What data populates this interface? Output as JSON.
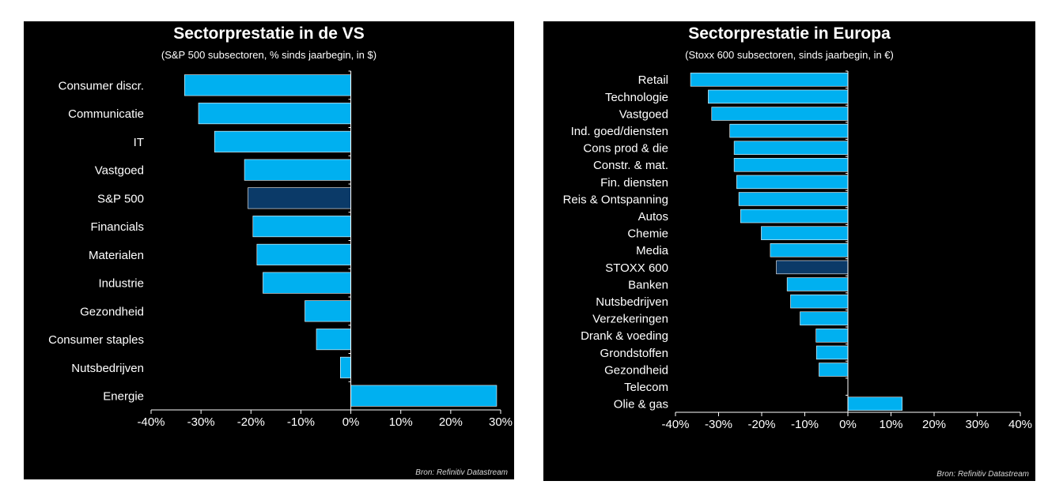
{
  "colors": {
    "bar": "#00b0f0",
    "highlight": "#0b3a68",
    "bar_outline": "#ffffff",
    "axis": "#ffffff",
    "background": "#000000"
  },
  "panels": {
    "us": {
      "title": "Sectorprestatie in de VS",
      "subtitle": "(S&P 500 subsectoren, % sinds jaarbegin, in $)",
      "source": "Bron: Refinitiv Datastream"
    },
    "eu": {
      "title": "Sectorprestatie in Europa",
      "subtitle": "(Stoxx 600 subsectoren, sinds jaarbegin, in €)",
      "source": "Bron: Refinitiv Datastream"
    }
  },
  "chart_data": [
    {
      "type": "bar",
      "orientation": "horizontal",
      "title": "Sectorprestatie in de VS",
      "subtitle": "(S&P 500 subsectoren, % sinds jaarbegin, in $)",
      "categories": [
        "Consumer discr.",
        "Communicatie",
        "IT",
        "Vastgoed",
        "S&P 500",
        "Financials",
        "Materialen",
        "Industrie",
        "Gezondheid",
        "Consumer staples",
        "Nutsbedrijven",
        "Energie"
      ],
      "values": [
        -33.3,
        -30.5,
        -27.3,
        -21.3,
        -20.6,
        -19.6,
        -18.8,
        -17.6,
        -9.2,
        -6.9,
        -2.1,
        29.2
      ],
      "highlight": "S&P 500",
      "xlim": [
        -40,
        30
      ],
      "xticks": [
        -40,
        -30,
        -20,
        -10,
        0,
        10,
        20,
        30
      ],
      "xtick_labels": [
        "-40%",
        "-30%",
        "-20%",
        "-10%",
        "0%",
        "10%",
        "20%",
        "30%"
      ],
      "xlabel": "",
      "ylabel": "",
      "grid": false
    },
    {
      "type": "bar",
      "orientation": "horizontal",
      "title": "Sectorprestatie in Europa",
      "subtitle": "(Stoxx 600 subsectoren, sinds jaarbegin, in €)",
      "categories": [
        "Retail",
        "Technologie",
        "Vastgoed",
        "Ind. goed/diensten",
        "Cons prod & die",
        "Constr. & mat.",
        "Fin. diensten",
        "Reis & Ontspanning",
        "Autos",
        "Chemie",
        "Media",
        "STOXX 600",
        "Banken",
        "Nutsbedrijven",
        "Verzekeringen",
        "Drank & voeding",
        "Grondstoffen",
        "Gezondheid",
        "Telecom",
        "Olie & gas"
      ],
      "values": [
        -36.5,
        -32.4,
        -31.6,
        -27.4,
        -26.4,
        -26.4,
        -25.8,
        -25.3,
        -24.9,
        -20.1,
        -18.0,
        -16.6,
        -14.1,
        -13.3,
        -11.1,
        -7.4,
        -7.3,
        -6.7,
        0.0,
        12.6
      ],
      "highlight": "STOXX 600",
      "xlim": [
        -40,
        40
      ],
      "xticks": [
        -40,
        -30,
        -20,
        -10,
        0,
        10,
        20,
        30,
        40
      ],
      "xtick_labels": [
        "-40%",
        "-30%",
        "-20%",
        "-10%",
        "0%",
        "10%",
        "20%",
        "30%",
        "40%"
      ],
      "xlabel": "",
      "ylabel": "",
      "grid": false
    }
  ]
}
